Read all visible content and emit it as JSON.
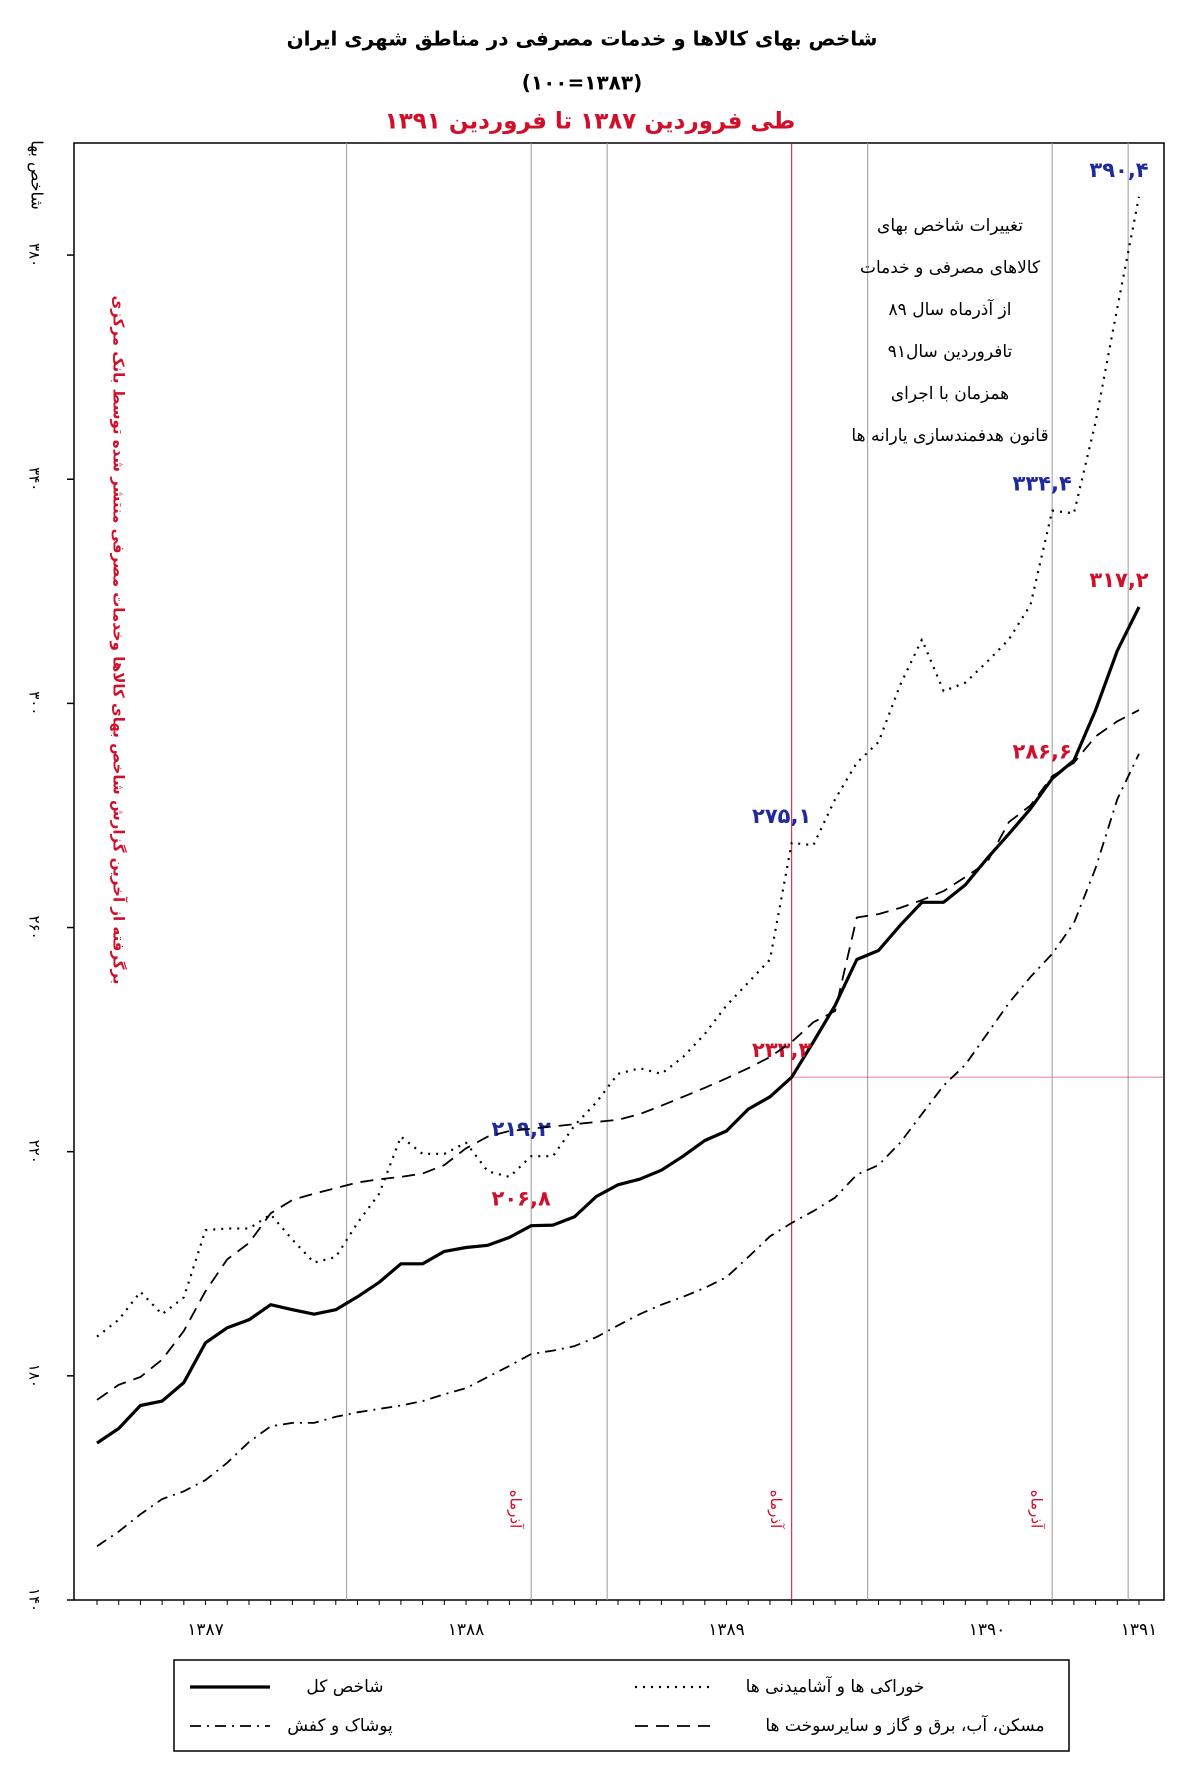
{
  "chart_data": {
    "type": "line",
    "title": "شاخص بهای کالاها و خدمات مصرفی در مناطق شهری ایران",
    "subtitle": "(۱۰۰=۱۳۸۳)",
    "period": "طی فروردین ۱۳۸۷ تا فروردین ۱۳۹۱",
    "y_label": "شاخص بها",
    "source_note": "برگرفته از آخرین گزارش شاخص بهای کالاها وخدمات مصرفی منتشر شده توسط بانک مرکزی",
    "note_box": [
      "تغییرات شاخص بهای",
      "کالاهای مصرفی و خدمات",
      "از آذرماه سال ۸۹",
      "تافروردین سال۹۱",
      "همزمان با اجرای",
      "قانون هدفمندسازی یارانه ها"
    ],
    "categories": [
      null,
      null,
      null,
      null,
      null,
      "۱۳۸۷",
      null,
      null,
      null,
      null,
      null,
      null,
      null,
      null,
      null,
      null,
      null,
      "۱۳۸۸",
      null,
      null,
      null,
      null,
      null,
      null,
      null,
      null,
      null,
      null,
      null,
      "۱۳۸۹",
      null,
      null,
      null,
      null,
      null,
      null,
      null,
      null,
      null,
      null,
      null,
      "۱۳۹۰",
      null,
      null,
      null,
      null,
      null,
      null,
      "۱۳۹۱"
    ],
    "annotations": [
      {
        "x": 20,
        "label": "آذرماه",
        "highlight": false
      },
      {
        "x": 32,
        "label": "آذرماه",
        "highlight": true
      },
      {
        "x": 44,
        "label": "آذرماه",
        "highlight": false
      }
    ],
    "ylim": [
      140,
      400
    ],
    "yticks": [
      {
        "value": 140,
        "label": "۱۴۰"
      },
      {
        "value": 180,
        "label": "۱۸۰"
      },
      {
        "value": 220,
        "label": "۲۲۰"
      },
      {
        "value": 260,
        "label": "۲۶۰"
      },
      {
        "value": 300,
        "label": "۳۰۰"
      },
      {
        "value": 340,
        "label": "۳۴۰"
      },
      {
        "value": 380,
        "label": "۳۸۰"
      }
    ],
    "series": [
      {
        "name": "شاخص کل",
        "color": "#000000",
        "line_style": "solid",
        "label_color": "#d0102a",
        "values": [
          168.0,
          170.6,
          174.7,
          175.5,
          178.8,
          185.9,
          188.6,
          190.0,
          192.7,
          191.8,
          191.0,
          191.8,
          194.1,
          196.7,
          200.0,
          200.0,
          202.2,
          202.9,
          203.3,
          204.7,
          206.8,
          206.9,
          208.4,
          212.0,
          214.1,
          215.1,
          216.7,
          219.2,
          222.0,
          223.7,
          227.6,
          229.8,
          233.3,
          239.6,
          246.1,
          254.3,
          255.9,
          260.4,
          264.5,
          264.5,
          267.6,
          272.3,
          276.7,
          281.2,
          286.6,
          289.8,
          298.8,
          309.4,
          317.2
        ],
        "value_labels": [
          null,
          null,
          null,
          null,
          null,
          null,
          null,
          null,
          null,
          null,
          null,
          null,
          null,
          null,
          null,
          null,
          null,
          null,
          null,
          null,
          "۲۰۶,۸",
          null,
          null,
          null,
          null,
          null,
          null,
          null,
          null,
          null,
          null,
          null,
          "۲۳۳,۳",
          null,
          null,
          null,
          null,
          null,
          null,
          null,
          null,
          null,
          null,
          null,
          "۲۸۶,۶",
          null,
          null,
          null,
          "۳۱۷,۲"
        ]
      },
      {
        "name": "خوراکی ها و آشامیدنی ها",
        "color": "#000000",
        "line_style": "dotted",
        "label_color": "#1f2a9c",
        "values": [
          187.0,
          190.0,
          195.0,
          191.0,
          194.0,
          206.0,
          206.3,
          206.3,
          208.8,
          204.3,
          200.2,
          201.2,
          207.3,
          212.5,
          222.7,
          219.6,
          219.6,
          221.6,
          216.5,
          215.5,
          219.2,
          219.2,
          224.7,
          228.8,
          233.9,
          234.9,
          233.9,
          236.9,
          241.0,
          246.1,
          250.2,
          254.3,
          275.1,
          274.7,
          282.9,
          289.4,
          293.1,
          303.3,
          311.4,
          302.2,
          303.7,
          307.4,
          311.4,
          317.6,
          334.4,
          333.9,
          350.2,
          370.6,
          390.4
        ],
        "value_labels": [
          null,
          null,
          null,
          null,
          null,
          null,
          null,
          null,
          null,
          null,
          null,
          null,
          null,
          null,
          null,
          null,
          null,
          null,
          null,
          null,
          "۲۱۹,۲",
          null,
          null,
          null,
          null,
          null,
          null,
          null,
          null,
          null,
          null,
          null,
          "۲۷۵,۱",
          null,
          null,
          null,
          null,
          null,
          null,
          null,
          null,
          null,
          null,
          null,
          "۳۳۴,۴",
          null,
          null,
          null,
          "۳۹۰,۴"
        ]
      },
      {
        "name": "پوشاک و کفش",
        "color": "#000000",
        "line_style": "dashdot",
        "values": [
          149.6,
          152.2,
          155.3,
          158.0,
          159.4,
          161.4,
          164.5,
          168.2,
          171.0,
          171.6,
          171.6,
          172.7,
          173.5,
          174.1,
          174.7,
          175.5,
          176.7,
          177.8,
          179.8,
          181.8,
          183.9,
          184.5,
          185.3,
          186.9,
          189.0,
          191.0,
          192.7,
          194.1,
          195.7,
          197.6,
          201.2,
          204.9,
          207.3,
          209.4,
          211.8,
          215.9,
          217.6,
          221.6,
          226.7,
          231.8,
          235.5,
          241.0,
          246.5,
          251.2,
          255.3,
          260.8,
          270.6,
          282.9,
          291.0
        ]
      },
      {
        "name": "مسکن، آب، برق و گاز و سایرسوخت ها",
        "color": "#000000",
        "line_style": "dashed",
        "values": [
          175.7,
          178.4,
          179.8,
          182.9,
          188.0,
          195.1,
          200.8,
          203.7,
          209.0,
          211.4,
          212.5,
          213.5,
          214.5,
          215.1,
          215.5,
          216.1,
          217.6,
          220.6,
          222.7,
          223.7,
          224.1,
          224.5,
          224.9,
          225.3,
          225.7,
          226.7,
          228.2,
          229.8,
          231.4,
          233.1,
          234.9,
          236.9,
          239.6,
          243.1,
          245.1,
          261.8,
          262.4,
          263.5,
          264.9,
          266.5,
          269.0,
          271.6,
          278.8,
          281.8,
          287.0,
          289.4,
          294.1,
          296.8,
          298.8
        ]
      }
    ],
    "highlight_color": "#d0102a",
    "grid": false
  }
}
